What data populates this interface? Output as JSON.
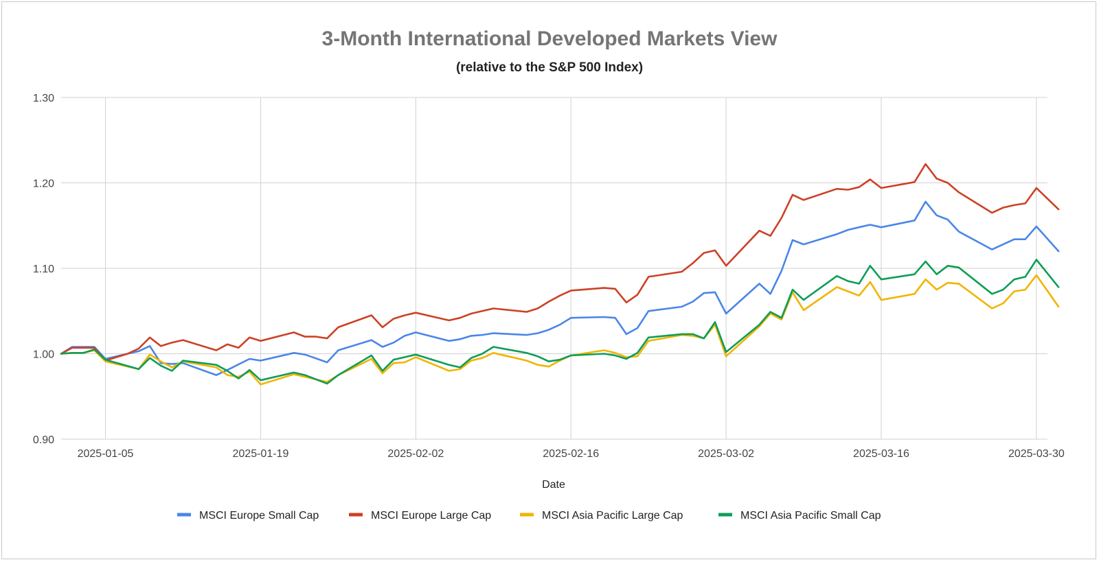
{
  "chart_data": {
    "type": "line",
    "title": "3-Month International Developed Markets View",
    "subtitle": "(relative to the S&P 500 Index)",
    "xlabel": "Date",
    "ylabel": "",
    "ylim": [
      0.9,
      1.3
    ],
    "yticks": [
      "0.90",
      "1.00",
      "1.10",
      "1.20",
      "1.30"
    ],
    "xticks": [
      "2025-01-05",
      "2025-01-19",
      "2025-02-02",
      "2025-02-16",
      "2025-03-02",
      "2025-03-16",
      "2025-03-30"
    ],
    "grid": true,
    "legend_position": "bottom",
    "x_start": "2025-01-01",
    "x_end": "2025-03-31",
    "series": [
      {
        "name": "MSCI Europe Small Cap",
        "color": "#4a86e8",
        "points": [
          [
            0,
            1.0
          ],
          [
            1,
            1.008
          ],
          [
            2,
            1.008
          ],
          [
            3,
            1.008
          ],
          [
            4,
            0.994
          ],
          [
            6,
            1.0
          ],
          [
            7,
            1.003
          ],
          [
            8,
            1.009
          ],
          [
            9,
            0.989
          ],
          [
            10,
            0.988
          ],
          [
            11,
            0.989
          ],
          [
            14,
            0.975
          ],
          [
            15,
            0.981
          ],
          [
            17,
            0.994
          ],
          [
            18,
            0.992
          ],
          [
            21,
            1.001
          ],
          [
            22,
            0.999
          ],
          [
            24,
            0.99
          ],
          [
            25,
            1.004
          ],
          [
            28,
            1.016
          ],
          [
            29,
            1.008
          ],
          [
            30,
            1.013
          ],
          [
            31,
            1.021
          ],
          [
            32,
            1.025
          ],
          [
            35,
            1.015
          ],
          [
            36,
            1.017
          ],
          [
            37,
            1.021
          ],
          [
            38,
            1.022
          ],
          [
            39,
            1.024
          ],
          [
            42,
            1.022
          ],
          [
            43,
            1.024
          ],
          [
            44,
            1.028
          ],
          [
            45,
            1.034
          ],
          [
            46,
            1.042
          ],
          [
            49,
            1.043
          ],
          [
            50,
            1.042
          ],
          [
            51,
            1.023
          ],
          [
            52,
            1.03
          ],
          [
            53,
            1.05
          ],
          [
            56,
            1.055
          ],
          [
            57,
            1.061
          ],
          [
            58,
            1.071
          ],
          [
            59,
            1.072
          ],
          [
            60,
            1.047
          ],
          [
            63,
            1.082
          ],
          [
            64,
            1.07
          ],
          [
            65,
            1.097
          ],
          [
            66,
            1.133
          ],
          [
            67,
            1.128
          ],
          [
            70,
            1.14
          ],
          [
            71,
            1.145
          ],
          [
            72,
            1.148
          ],
          [
            73,
            1.151
          ],
          [
            74,
            1.148
          ],
          [
            77,
            1.156
          ],
          [
            78,
            1.178
          ],
          [
            79,
            1.162
          ],
          [
            80,
            1.157
          ],
          [
            81,
            1.143
          ],
          [
            84,
            1.122
          ],
          [
            85,
            1.128
          ],
          [
            86,
            1.134
          ],
          [
            87,
            1.134
          ],
          [
            88,
            1.149
          ],
          [
            90,
            1.12
          ]
        ]
      },
      {
        "name": "MSCI Europe Large Cap",
        "color": "#cc4125",
        "points": [
          [
            0,
            1.0
          ],
          [
            1,
            1.007
          ],
          [
            2,
            1.007
          ],
          [
            3,
            1.007
          ],
          [
            4,
            0.992
          ],
          [
            6,
            1.0
          ],
          [
            7,
            1.006
          ],
          [
            8,
            1.019
          ],
          [
            9,
            1.009
          ],
          [
            10,
            1.013
          ],
          [
            11,
            1.016
          ],
          [
            14,
            1.004
          ],
          [
            15,
            1.011
          ],
          [
            16,
            1.007
          ],
          [
            17,
            1.019
          ],
          [
            18,
            1.015
          ],
          [
            21,
            1.025
          ],
          [
            22,
            1.02
          ],
          [
            23,
            1.02
          ],
          [
            24,
            1.018
          ],
          [
            25,
            1.031
          ],
          [
            28,
            1.045
          ],
          [
            29,
            1.031
          ],
          [
            30,
            1.041
          ],
          [
            31,
            1.045
          ],
          [
            32,
            1.048
          ],
          [
            35,
            1.039
          ],
          [
            36,
            1.042
          ],
          [
            37,
            1.047
          ],
          [
            39,
            1.053
          ],
          [
            42,
            1.049
          ],
          [
            43,
            1.053
          ],
          [
            44,
            1.061
          ],
          [
            45,
            1.068
          ],
          [
            46,
            1.074
          ],
          [
            49,
            1.077
          ],
          [
            50,
            1.076
          ],
          [
            51,
            1.06
          ],
          [
            52,
            1.069
          ],
          [
            53,
            1.09
          ],
          [
            56,
            1.096
          ],
          [
            57,
            1.106
          ],
          [
            58,
            1.118
          ],
          [
            59,
            1.121
          ],
          [
            60,
            1.103
          ],
          [
            63,
            1.144
          ],
          [
            64,
            1.138
          ],
          [
            65,
            1.159
          ],
          [
            66,
            1.186
          ],
          [
            67,
            1.18
          ],
          [
            70,
            1.193
          ],
          [
            71,
            1.192
          ],
          [
            72,
            1.195
          ],
          [
            73,
            1.204
          ],
          [
            74,
            1.194
          ],
          [
            77,
            1.201
          ],
          [
            78,
            1.222
          ],
          [
            79,
            1.205
          ],
          [
            80,
            1.2
          ],
          [
            81,
            1.189
          ],
          [
            84,
            1.165
          ],
          [
            85,
            1.171
          ],
          [
            86,
            1.174
          ],
          [
            87,
            1.176
          ],
          [
            88,
            1.194
          ],
          [
            90,
            1.169
          ]
        ]
      },
      {
        "name": "MSCI Asia Pacific Large Cap",
        "color": "#f1b400",
        "points": [
          [
            0,
            1.0
          ],
          [
            1,
            1.001
          ],
          [
            2,
            1.001
          ],
          [
            3,
            1.004
          ],
          [
            4,
            0.991
          ],
          [
            7,
            0.982
          ],
          [
            8,
            0.999
          ],
          [
            9,
            0.991
          ],
          [
            10,
            0.984
          ],
          [
            11,
            0.991
          ],
          [
            14,
            0.984
          ],
          [
            15,
            0.975
          ],
          [
            16,
            0.973
          ],
          [
            17,
            0.979
          ],
          [
            18,
            0.964
          ],
          [
            21,
            0.976
          ],
          [
            22,
            0.973
          ],
          [
            24,
            0.967
          ],
          [
            25,
            0.975
          ],
          [
            28,
            0.994
          ],
          [
            29,
            0.977
          ],
          [
            30,
            0.989
          ],
          [
            31,
            0.99
          ],
          [
            32,
            0.996
          ],
          [
            35,
            0.98
          ],
          [
            36,
            0.982
          ],
          [
            37,
            0.992
          ],
          [
            38,
            0.995
          ],
          [
            39,
            1.001
          ],
          [
            42,
            0.992
          ],
          [
            43,
            0.987
          ],
          [
            44,
            0.985
          ],
          [
            45,
            0.992
          ],
          [
            46,
            0.998
          ],
          [
            49,
            1.004
          ],
          [
            50,
            1.001
          ],
          [
            51,
            0.996
          ],
          [
            52,
            0.997
          ],
          [
            53,
            1.015
          ],
          [
            56,
            1.022
          ],
          [
            57,
            1.021
          ],
          [
            58,
            1.018
          ],
          [
            59,
            1.034
          ],
          [
            60,
            0.997
          ],
          [
            63,
            1.032
          ],
          [
            64,
            1.047
          ],
          [
            65,
            1.04
          ],
          [
            66,
            1.072
          ],
          [
            67,
            1.051
          ],
          [
            70,
            1.078
          ],
          [
            71,
            1.073
          ],
          [
            72,
            1.068
          ],
          [
            73,
            1.084
          ],
          [
            74,
            1.063
          ],
          [
            77,
            1.07
          ],
          [
            78,
            1.087
          ],
          [
            79,
            1.075
          ],
          [
            80,
            1.083
          ],
          [
            81,
            1.082
          ],
          [
            84,
            1.053
          ],
          [
            85,
            1.059
          ],
          [
            86,
            1.073
          ],
          [
            87,
            1.075
          ],
          [
            88,
            1.092
          ],
          [
            90,
            1.055
          ]
        ]
      },
      {
        "name": "MSCI Asia Pacific Small Cap",
        "color": "#0f9d58",
        "points": [
          [
            0,
            1.0
          ],
          [
            1,
            1.001
          ],
          [
            2,
            1.001
          ],
          [
            3,
            1.005
          ],
          [
            4,
            0.993
          ],
          [
            7,
            0.982
          ],
          [
            8,
            0.995
          ],
          [
            9,
            0.986
          ],
          [
            10,
            0.98
          ],
          [
            11,
            0.992
          ],
          [
            14,
            0.987
          ],
          [
            15,
            0.98
          ],
          [
            16,
            0.971
          ],
          [
            17,
            0.981
          ],
          [
            18,
            0.969
          ],
          [
            21,
            0.978
          ],
          [
            22,
            0.975
          ],
          [
            24,
            0.965
          ],
          [
            25,
            0.975
          ],
          [
            28,
            0.998
          ],
          [
            29,
            0.98
          ],
          [
            30,
            0.993
          ],
          [
            31,
            0.996
          ],
          [
            32,
            0.999
          ],
          [
            35,
            0.987
          ],
          [
            36,
            0.984
          ],
          [
            37,
            0.995
          ],
          [
            38,
            1.0
          ],
          [
            39,
            1.008
          ],
          [
            42,
            1.001
          ],
          [
            43,
            0.997
          ],
          [
            44,
            0.991
          ],
          [
            45,
            0.993
          ],
          [
            46,
            0.998
          ],
          [
            49,
            1.0
          ],
          [
            50,
            0.998
          ],
          [
            51,
            0.994
          ],
          [
            52,
            1.001
          ],
          [
            53,
            1.019
          ],
          [
            56,
            1.023
          ],
          [
            57,
            1.023
          ],
          [
            58,
            1.018
          ],
          [
            59,
            1.037
          ],
          [
            60,
            1.002
          ],
          [
            63,
            1.034
          ],
          [
            64,
            1.049
          ],
          [
            65,
            1.042
          ],
          [
            66,
            1.075
          ],
          [
            67,
            1.063
          ],
          [
            70,
            1.091
          ],
          [
            71,
            1.085
          ],
          [
            72,
            1.082
          ],
          [
            73,
            1.103
          ],
          [
            74,
            1.087
          ],
          [
            77,
            1.093
          ],
          [
            78,
            1.108
          ],
          [
            79,
            1.093
          ],
          [
            80,
            1.103
          ],
          [
            81,
            1.101
          ],
          [
            84,
            1.07
          ],
          [
            85,
            1.075
          ],
          [
            86,
            1.087
          ],
          [
            87,
            1.09
          ],
          [
            88,
            1.11
          ],
          [
            90,
            1.078
          ]
        ]
      }
    ]
  }
}
